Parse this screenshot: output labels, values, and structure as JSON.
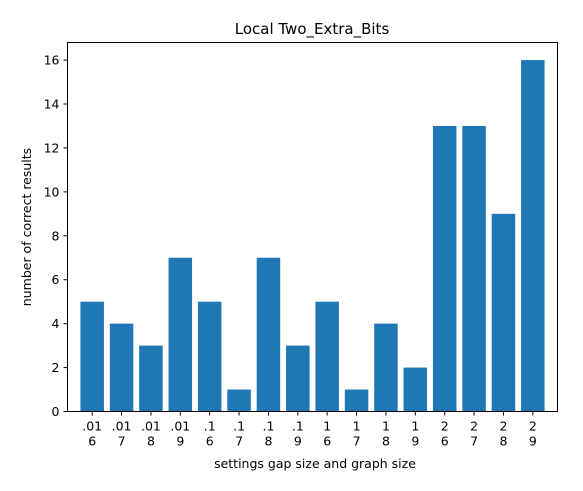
{
  "chart_data": {
    "type": "bar",
    "title": "Local Two_Extra_Bits",
    "xlabel": "settings gap size and graph size",
    "ylabel": "number of correct results",
    "categories": [
      [
        ".01",
        "6"
      ],
      [
        ".01",
        "7"
      ],
      [
        ".01",
        "8"
      ],
      [
        ".01",
        "9"
      ],
      [
        ".1",
        "6"
      ],
      [
        ".1",
        "7"
      ],
      [
        ".1",
        "8"
      ],
      [
        ".1",
        "9"
      ],
      [
        "1",
        "6"
      ],
      [
        "1",
        "7"
      ],
      [
        "1",
        "8"
      ],
      [
        "1",
        "9"
      ],
      [
        "2",
        "6"
      ],
      [
        "2",
        "7"
      ],
      [
        "2",
        "8"
      ],
      [
        "2",
        "9"
      ]
    ],
    "values": [
      5,
      4,
      3,
      7,
      5,
      1,
      7,
      3,
      5,
      1,
      4,
      2,
      13,
      13,
      9,
      16
    ],
    "ylim": [
      0,
      16.8
    ],
    "yticks": [
      0,
      2,
      4,
      6,
      8,
      10,
      12,
      14,
      16
    ],
    "bar_color": "#1f77b4",
    "grid": false
  }
}
